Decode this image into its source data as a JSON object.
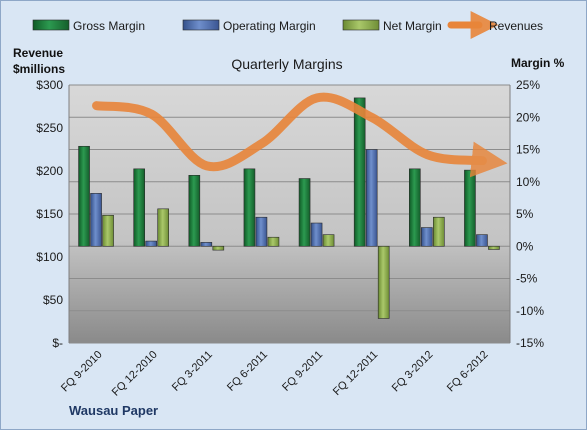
{
  "chart_data": {
    "type": "bar",
    "title": "Quarterly Margins",
    "company": "Wausau Paper",
    "y_left_label_line1": "Revenue",
    "y_left_label_line2": "$millions",
    "y_right_label": "Margin %",
    "categories": [
      "FQ 9-2010",
      "FQ 12-2010",
      "FQ 3-2011",
      "FQ 6-2011",
      "FQ 9-2011",
      "FQ 12-2011",
      "FQ 3-2012",
      "FQ 6-2012"
    ],
    "left_ticks": [
      "$-",
      "$50",
      "$100",
      "$150",
      "$200",
      "$250",
      "$300"
    ],
    "right_ticks": [
      "-15%",
      "-10%",
      "-5%",
      "0%",
      "5%",
      "10%",
      "15%",
      "20%",
      "25%"
    ],
    "ylim_left": [
      0,
      300
    ],
    "ylim_right": [
      -15,
      25
    ],
    "grid": true,
    "legend_position": "top",
    "series": [
      {
        "name": "Gross Margin",
        "type": "bar",
        "axis": "right",
        "color": "#1e7a3c",
        "values": [
          15.5,
          12.0,
          11.0,
          12.0,
          10.5,
          23.0,
          12.0,
          11.8
        ]
      },
      {
        "name": "Operating Margin",
        "type": "bar",
        "axis": "right",
        "color": "#4f6fae",
        "values": [
          8.2,
          0.8,
          0.6,
          4.5,
          3.6,
          15.0,
          2.9,
          1.8
        ]
      },
      {
        "name": "Net Margin",
        "type": "bar",
        "axis": "right",
        "color": "#8fae4f",
        "values": [
          4.8,
          5.8,
          -0.6,
          1.4,
          1.8,
          -11.2,
          4.5,
          -0.5
        ]
      },
      {
        "name": "Revenues",
        "type": "line",
        "axis": "left",
        "color": "#e8853a",
        "values": [
          276,
          266,
          206,
          232,
          285,
          262,
          219,
          212
        ]
      }
    ]
  }
}
